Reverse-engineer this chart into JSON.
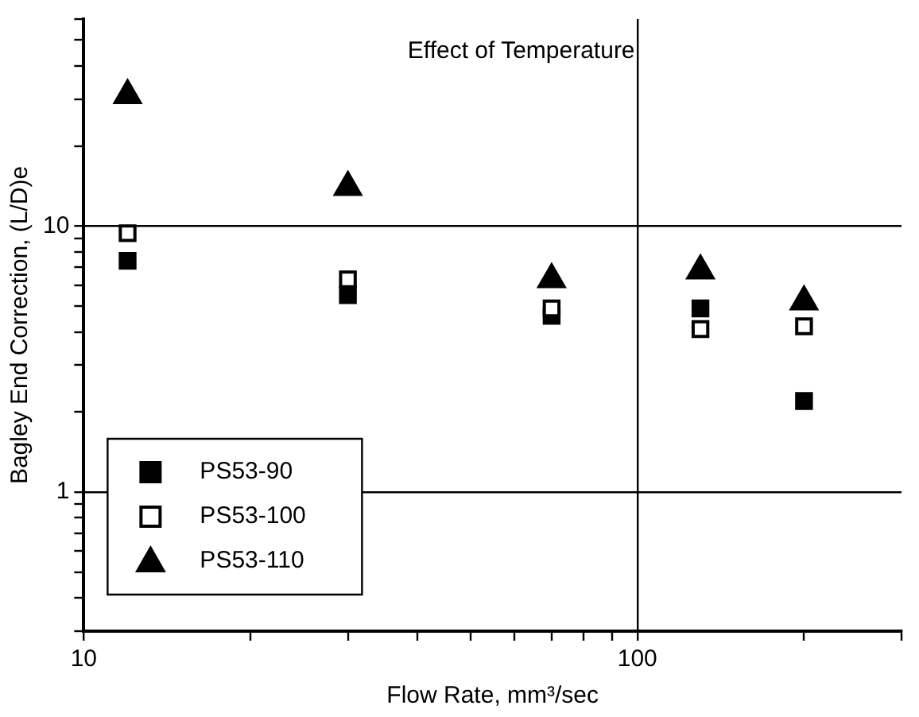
{
  "chart_data": {
    "type": "scatter",
    "title": "Effect of Temperature",
    "xlabel": "Flow Rate, mm³/sec",
    "ylabel": "Bagley End Correction, (L/D)e",
    "log": "xy",
    "grid": true,
    "legend": "bottom left",
    "xlim": [
      10,
      300
    ],
    "xticks": [
      10,
      {
        "value": 20,
        "label": null
      },
      {
        "value": 30,
        "label": null
      },
      {
        "value": 40,
        "label": null
      },
      {
        "value": 50,
        "label": null
      },
      {
        "value": 60,
        "label": null
      },
      {
        "value": 70,
        "label": null
      },
      {
        "value": 80,
        "label": null
      },
      {
        "value": 90,
        "label": null
      },
      100,
      {
        "value": 200,
        "label": null
      },
      {
        "value": 300,
        "label": null
      }
    ],
    "ylim": [
      0.3,
      60
    ],
    "yticks": [
      {
        "value": 0.3,
        "label": null
      },
      {
        "value": 0.4,
        "label": null
      },
      {
        "value": 0.5,
        "label": null
      },
      {
        "value": 0.6,
        "label": null
      },
      {
        "value": 0.7,
        "label": null
      },
      {
        "value": 0.8,
        "label": null
      },
      {
        "value": 0.9,
        "label": null
      },
      1,
      {
        "value": 2,
        "label": null
      },
      {
        "value": 3,
        "label": null
      },
      {
        "value": 4,
        "label": null
      },
      {
        "value": 5,
        "label": null
      },
      {
        "value": 6,
        "label": null
      },
      {
        "value": 7,
        "label": null
      },
      {
        "value": 8,
        "label": null
      },
      {
        "value": 9,
        "label": null
      },
      10,
      {
        "value": 20,
        "label": null
      },
      {
        "value": 30,
        "label": null
      },
      {
        "value": 40,
        "label": null
      },
      {
        "value": 50,
        "label": null
      },
      {
        "value": 60,
        "label": null
      }
    ],
    "x": [
      12,
      30,
      70,
      130,
      200
    ],
    "series": [
      {
        "name": "PS53-90",
        "color": "#000000",
        "marker": "square",
        "values": [
          7.4,
          5.5,
          4.6,
          4.9,
          2.2
        ]
      },
      {
        "name": "PS53-100",
        "color": "#ffffff",
        "marker": "square",
        "values": [
          9.4,
          6.3,
          4.9,
          4.1,
          4.2
        ]
      },
      {
        "name": "PS53-110",
        "color": "#000000",
        "marker": "triangle",
        "values": [
          31,
          14,
          6.3,
          6.8,
          5.2
        ]
      }
    ]
  }
}
